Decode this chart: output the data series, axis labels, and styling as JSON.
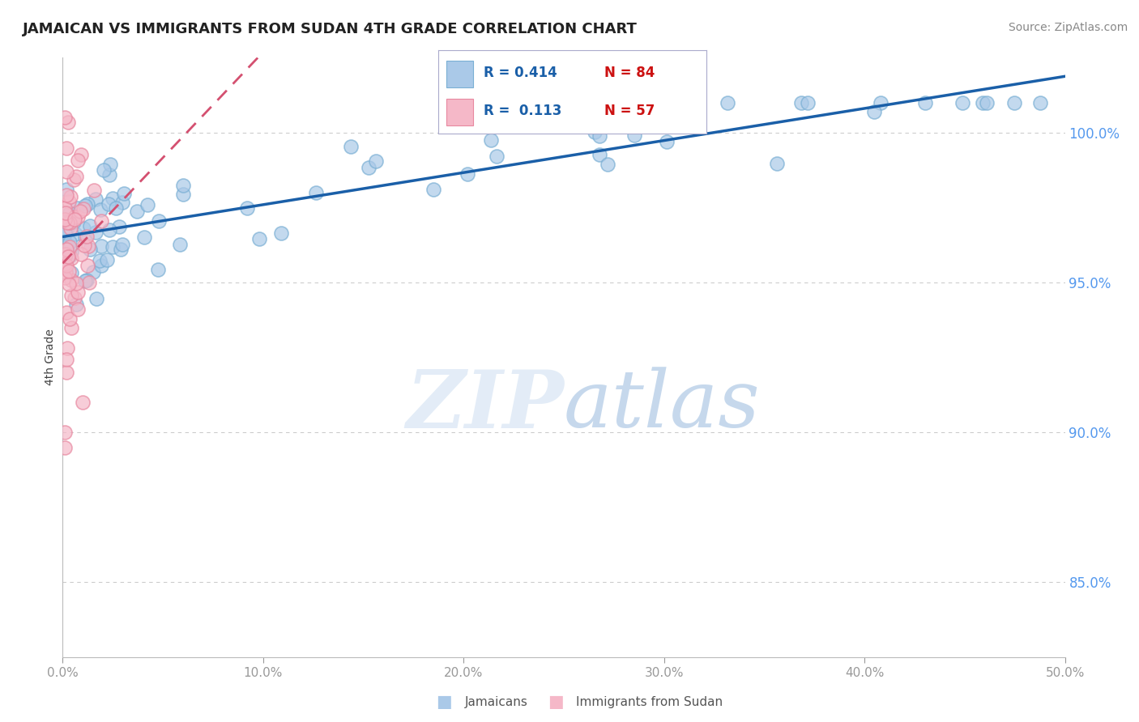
{
  "title": "JAMAICAN VS IMMIGRANTS FROM SUDAN 4TH GRADE CORRELATION CHART",
  "source": "Source: ZipAtlas.com",
  "ylabel": "4th Grade",
  "xlim": [
    0.0,
    0.5
  ],
  "ylim": [
    0.825,
    1.025
  ],
  "yticks_right": [
    0.85,
    0.9,
    0.95,
    1.0
  ],
  "xticks": [
    0.0,
    0.1,
    0.2,
    0.3,
    0.4,
    0.5
  ],
  "legend_r1": "R = 0.414",
  "legend_n1": "N = 84",
  "legend_r2": "R =  0.113",
  "legend_n2": "N = 57",
  "blue_fill_color": "#aac9e8",
  "pink_fill_color": "#f5b8c8",
  "blue_edge_color": "#7aafd4",
  "pink_edge_color": "#e888a0",
  "blue_line_color": "#1a5fa8",
  "pink_line_color": "#d45070",
  "title_color": "#222222",
  "source_color": "#888888",
  "axis_label_color": "#444444",
  "tick_color_right": "#5599ee",
  "tick_color_bottom": "#999999",
  "grid_color": "#cccccc",
  "background_color": "#ffffff",
  "series1_label": "Jamaicans",
  "series2_label": "Immigrants from Sudan",
  "legend_box_color": "#e8f0fa",
  "legend_border_color": "#aaaacc",
  "watermark_color": "#dce8f5"
}
